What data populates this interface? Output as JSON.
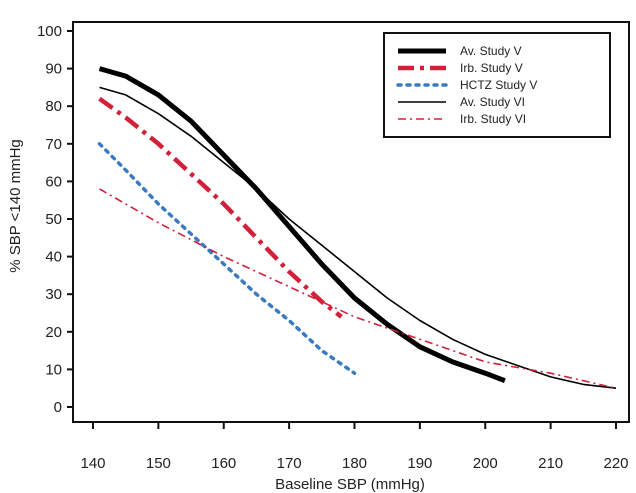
{
  "chart_data": {
    "type": "line",
    "title": "",
    "xlabel": "Baseline SBP (mmHg)",
    "ylabel": "% SBP <140 mmHg",
    "xlim": [
      140,
      220
    ],
    "ylim": [
      0,
      100
    ],
    "xticks": [
      140,
      150,
      160,
      170,
      180,
      190,
      200,
      210,
      220
    ],
    "yticks": [
      0,
      10,
      20,
      30,
      40,
      50,
      60,
      70,
      80,
      90,
      100
    ],
    "grid": false,
    "legend_position": "top-right",
    "series": [
      {
        "name": "Av. Study V",
        "style": "solid-thick",
        "color": "#000000",
        "x": [
          141,
          145,
          150,
          155,
          160,
          165,
          170,
          175,
          180,
          185,
          190,
          195,
          200,
          203
        ],
        "y": [
          90,
          88,
          83,
          76,
          67,
          58,
          48,
          38,
          29,
          22,
          16,
          12,
          9,
          7
        ]
      },
      {
        "name": "Irb. Study V",
        "style": "dash-dot-thick",
        "color": "#d0203a",
        "x": [
          141,
          145,
          150,
          155,
          160,
          165,
          170,
          175,
          178
        ],
        "y": [
          82,
          77,
          70,
          62,
          54,
          45,
          36,
          28,
          24
        ]
      },
      {
        "name": "HCTZ Study V",
        "style": "dotted",
        "color": "#3a7bc0",
        "x": [
          141,
          145,
          150,
          155,
          160,
          165,
          170,
          175,
          180
        ],
        "y": [
          70,
          63,
          54,
          46,
          38,
          30,
          23,
          15,
          9
        ]
      },
      {
        "name": "Av. Study VI",
        "style": "solid-thin",
        "color": "#000000",
        "x": [
          141,
          145,
          150,
          155,
          160,
          165,
          170,
          175,
          180,
          185,
          190,
          195,
          200,
          205,
          210,
          215,
          220
        ],
        "y": [
          85,
          83,
          78,
          72,
          65,
          58,
          50,
          43,
          36,
          29,
          23,
          18,
          14,
          11,
          8,
          6,
          5
        ]
      },
      {
        "name": "Irb. Study VI",
        "style": "dash-dot-thin",
        "color": "#d0203a",
        "x": [
          141,
          150,
          160,
          170,
          180,
          190,
          200,
          210,
          220
        ],
        "y": [
          58,
          49,
          40,
          32,
          24,
          18,
          12,
          9,
          5
        ]
      }
    ]
  }
}
